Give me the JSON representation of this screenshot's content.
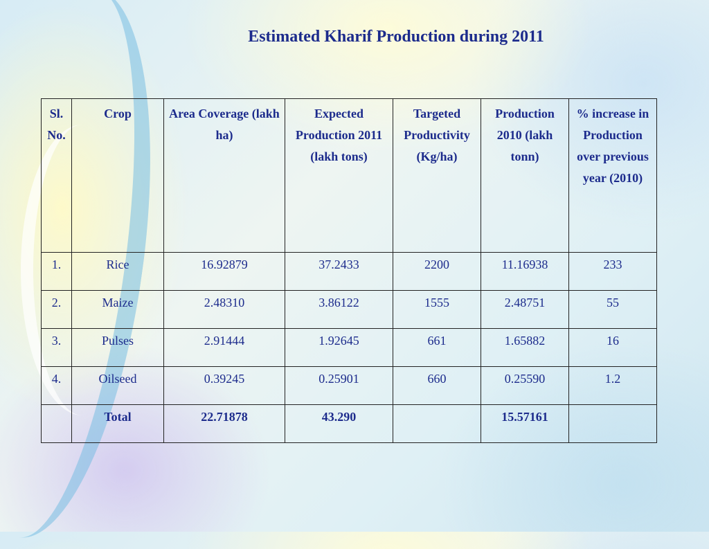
{
  "title": "Estimated Kharif Production during 2011",
  "table": {
    "headers": [
      "Sl. No.",
      "Crop",
      "Area Coverage (lakh ha)",
      "Expected Production 2011 (lakh tons)",
      "Targeted Productivity (Kg/ha)",
      "Production 2010 (lakh tonn)",
      "% increase in Production over previous year (2010)"
    ],
    "rows": [
      [
        "1.",
        "Rice",
        "16.92879",
        "37.2433",
        "2200",
        "11.16938",
        "233"
      ],
      [
        "2.",
        "Maize",
        "2.48310",
        "3.86122",
        "1555",
        "2.48751",
        "55"
      ],
      [
        "3.",
        "Pulses",
        "2.91444",
        "1.92645",
        "661",
        "1.65882",
        "16"
      ],
      [
        "4.",
        "Oilseed",
        "0.39245",
        "0.25901",
        "660",
        "0.25590",
        "1.2"
      ]
    ],
    "total": [
      "",
      "Total",
      "22.71878",
      "43.290",
      "",
      "15.57161",
      ""
    ]
  },
  "colors": {
    "text": "#1c2b8c",
    "border": "#222222"
  }
}
